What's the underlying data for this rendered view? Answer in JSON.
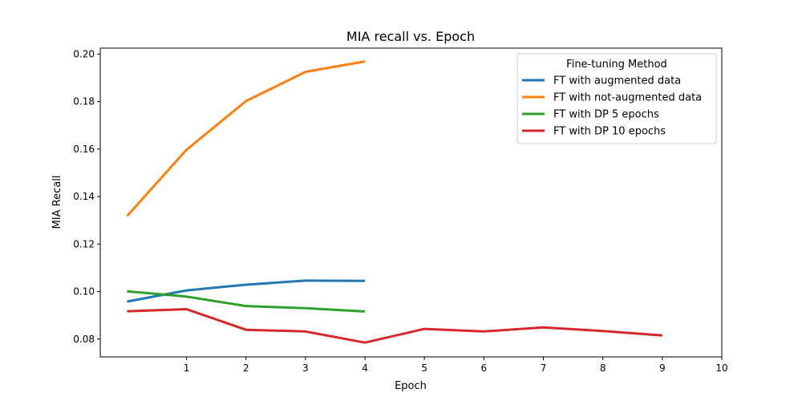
{
  "chart_data": {
    "type": "line",
    "title": "MIA recall  vs. Epoch",
    "xlabel": "Epoch",
    "ylabel": "MIA Recall",
    "xlim": [
      -0.45,
      10
    ],
    "ylim": [
      0.0725,
      0.2025
    ],
    "xticks": [
      1,
      2,
      3,
      4,
      5,
      6,
      7,
      8,
      9,
      10
    ],
    "yticks": [
      0.08,
      0.1,
      0.12,
      0.14,
      0.16,
      0.18,
      0.2
    ],
    "ytick_labels": [
      "0.08",
      "0.10",
      "0.12",
      "0.14",
      "0.16",
      "0.18",
      "0.20"
    ],
    "grid": false,
    "legend": {
      "title": "Fine-tuning Method",
      "placement": "top-right"
    },
    "series": [
      {
        "name": "FT with augmented data",
        "color": "#1f77b4",
        "x": [
          0,
          1,
          2,
          3,
          4
        ],
        "y": [
          0.0958,
          0.1005,
          0.1029,
          0.1046,
          0.1045
        ]
      },
      {
        "name": "FT with not-augmented data",
        "color": "#ff7f0e",
        "x": [
          0,
          1,
          2,
          3,
          4
        ],
        "y": [
          0.1318,
          0.1597,
          0.1802,
          0.1925,
          0.1969
        ]
      },
      {
        "name": "FT with DP 5 epochs",
        "color": "#2ca02c",
        "x": [
          0,
          1,
          2,
          3,
          4
        ],
        "y": [
          0.1001,
          0.0979,
          0.0939,
          0.093,
          0.0916
        ]
      },
      {
        "name": "FT with DP 10 epochs",
        "color": "#d62728",
        "x": [
          0,
          1,
          2,
          3,
          4,
          5,
          6,
          7,
          8,
          9
        ],
        "y": [
          0.0917,
          0.0926,
          0.0839,
          0.0832,
          0.0785,
          0.0843,
          0.0832,
          0.0849,
          0.0834,
          0.0815
        ]
      }
    ]
  }
}
